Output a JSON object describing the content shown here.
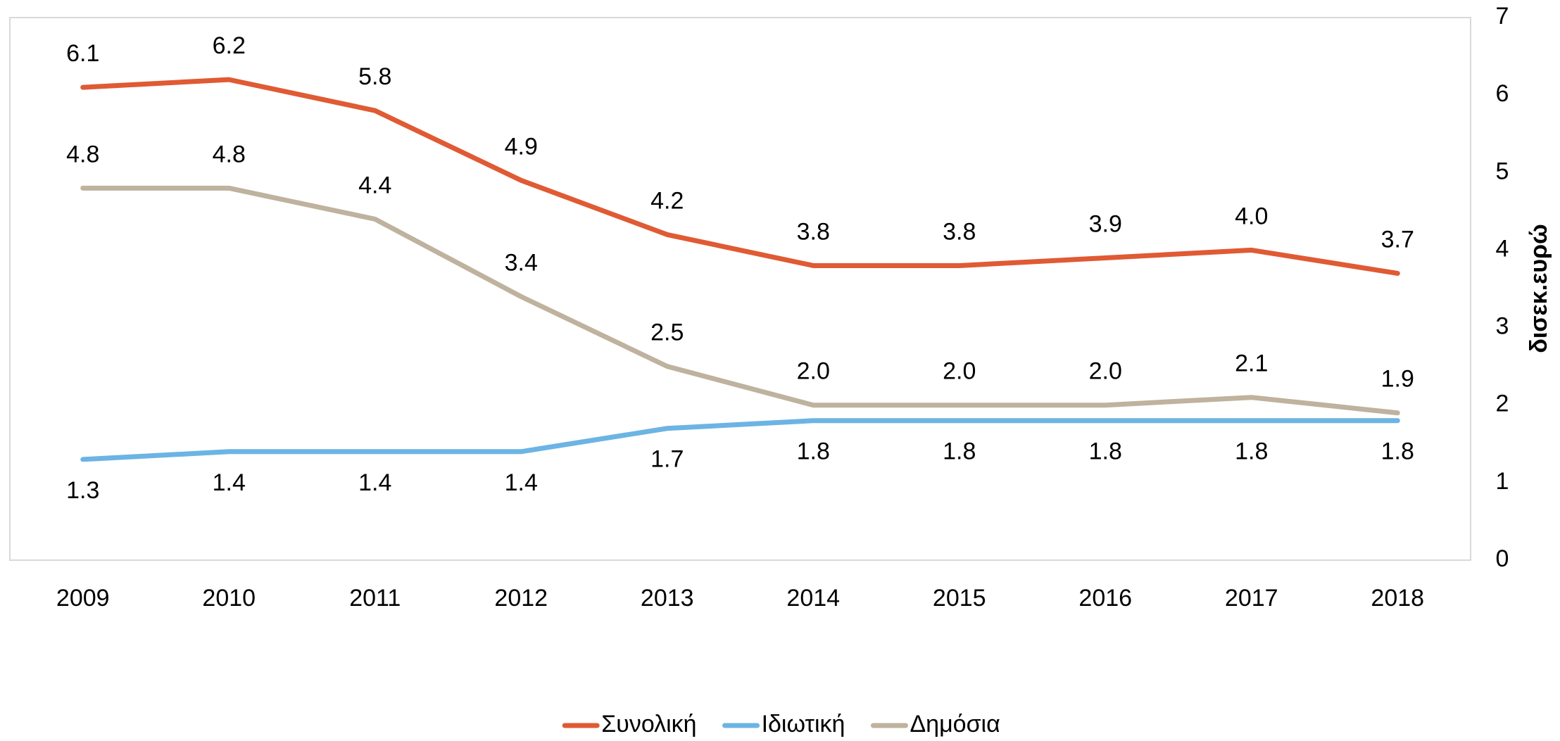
{
  "chart_data": {
    "type": "line",
    "categories": [
      "2009",
      "2010",
      "2011",
      "2012",
      "2013",
      "2014",
      "2015",
      "2016",
      "2017",
      "2018"
    ],
    "series": [
      {
        "name": "Συνολική",
        "color": "#e05a33",
        "values": [
          6.1,
          6.2,
          5.8,
          4.9,
          4.2,
          3.8,
          3.8,
          3.9,
          4.0,
          3.7
        ],
        "value_labels": [
          "6.1",
          "6.2",
          "5.8",
          "4.9",
          "4.2",
          "3.8",
          "3.8",
          "3.9",
          "4.0",
          "3.7"
        ]
      },
      {
        "name": "Ιδιωτική",
        "color": "#6cb4e4",
        "values": [
          1.3,
          1.4,
          1.4,
          1.4,
          1.7,
          1.8,
          1.8,
          1.8,
          1.8,
          1.8
        ],
        "value_labels": [
          "1.3",
          "1.4",
          "1.4",
          "1.4",
          "1.7",
          "1.8",
          "1.8",
          "1.8",
          "1.8",
          "1.8"
        ]
      },
      {
        "name": "Δημόσια",
        "color": "#bfb29e",
        "values": [
          4.8,
          4.8,
          4.4,
          3.4,
          2.5,
          2.0,
          2.0,
          2.0,
          2.1,
          1.9
        ],
        "value_labels": [
          "4.8",
          "4.8",
          "4.4",
          "3.4",
          "2.5",
          "2.0",
          "2.0",
          "2.0",
          "2.1",
          "1.9"
        ]
      }
    ],
    "y_axis_label": "δισεκ.ευρώ",
    "y_axis_side": "right",
    "ylim": [
      0,
      7
    ],
    "yticks": [
      0,
      1,
      2,
      3,
      4,
      5,
      6,
      7
    ],
    "grid": false,
    "legend": "bottom"
  }
}
